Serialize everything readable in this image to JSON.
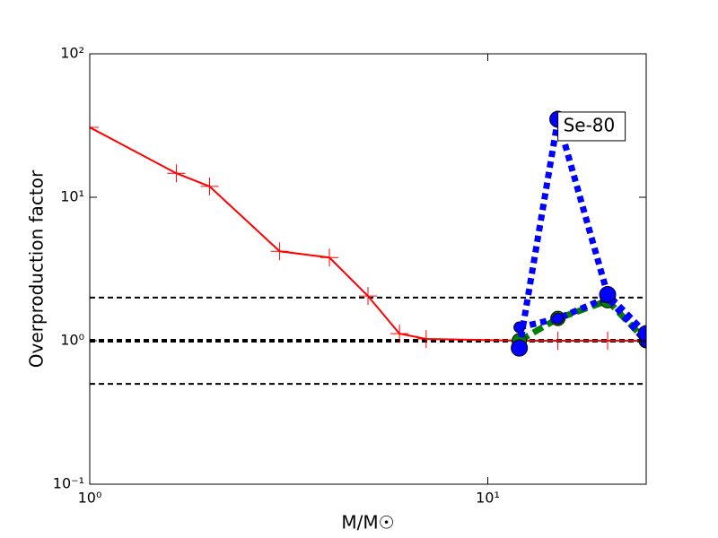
{
  "chart_data": {
    "type": "line",
    "xlabel": "M/M☉",
    "ylabel": "Overproduction factor",
    "xscale": "log",
    "yscale": "log",
    "xlim": [
      1,
      25
    ],
    "ylim": [
      0.1,
      100
    ],
    "xticks": [
      {
        "value": 1,
        "label": "10⁰"
      },
      {
        "value": 10,
        "label": "10¹"
      }
    ],
    "yticks": [
      {
        "value": 0.1,
        "label": "10⁻¹"
      },
      {
        "value": 1,
        "label": "10⁰"
      },
      {
        "value": 10,
        "label": "10¹"
      },
      {
        "value": 100,
        "label": "10²"
      }
    ],
    "reference_lines": [
      {
        "value": 2,
        "width": 2
      },
      {
        "value": 1,
        "width": 4
      },
      {
        "value": 0.5,
        "width": 2
      }
    ],
    "series": [
      {
        "color": "#ff0000",
        "linestyle": "solid",
        "linewidth": 2,
        "marker": "plus",
        "markersize": 10,
        "x": [
          1,
          1.65,
          2,
          3,
          4,
          5,
          6,
          7,
          12,
          15,
          20,
          25
        ],
        "values": [
          30.7,
          14.7,
          11.9,
          4.2,
          3.8,
          2.05,
          1.12,
          1.03,
          1.0,
          1.0,
          1.0,
          1.0
        ]
      },
      {
        "color": "#008000",
        "linestyle": "dashed",
        "linewidth": 7,
        "marker": "circle",
        "markersize": 8,
        "x": [
          12,
          15,
          20,
          25
        ],
        "values": [
          1.0,
          1.43,
          1.9,
          1.0
        ]
      },
      {
        "color": "#0000ff",
        "linestyle": "dotted",
        "linewidth": 7,
        "marker": "circle",
        "markersize": 6,
        "x": [
          12,
          15,
          20,
          25
        ],
        "values": [
          1.24,
          1.43,
          2.0,
          0.98
        ]
      },
      {
        "color": "#0000ff",
        "linestyle": "dotted",
        "linewidth": 7,
        "marker": "circle",
        "markersize": 9,
        "x": [
          12,
          15,
          20,
          25
        ],
        "values": [
          0.89,
          35,
          2.1,
          1.12
        ]
      }
    ],
    "annotation": {
      "text": "Se-80",
      "x": 15,
      "y": 35
    }
  }
}
